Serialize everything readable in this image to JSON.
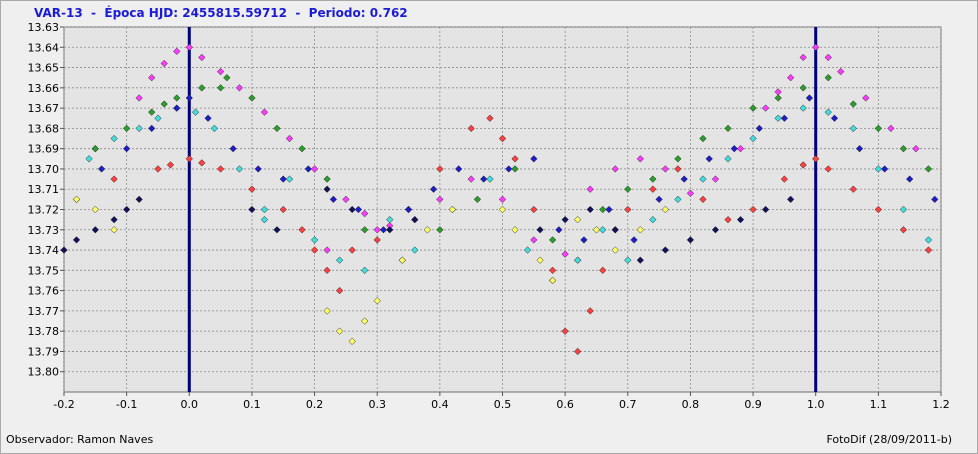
{
  "header": {
    "title": "VAR-13  -  Época HJD: 2455815.59712  -  Periodo: 0.762"
  },
  "footer": {
    "observer": "Observador: Ramon Naves",
    "software": "FotoDif (28/09/2011-b)"
  },
  "colors": {
    "title": "#1b1bd6",
    "marker_line": "#00007a",
    "plot_background": "#e4e4e4",
    "grid": "#8c8c8c"
  },
  "chart_data": {
    "type": "scatter",
    "title": "VAR-13  -  Época HJD: 2455815.59712  -  Periodo: 0.762",
    "xlabel": "",
    "ylabel": "",
    "xlim": [
      -0.2,
      1.2
    ],
    "ylim": [
      13.63,
      13.81
    ],
    "y_inverted": true,
    "grid": true,
    "x_ticks": [
      "-0.2",
      "-0.1",
      "0.0",
      "0.1",
      "0.2",
      "0.3",
      "0.4",
      "0.5",
      "0.6",
      "0.7",
      "0.8",
      "0.9",
      "1.0",
      "1.1",
      "1.2"
    ],
    "y_ticks": [
      "13.63",
      "13.64",
      "13.65",
      "13.66",
      "13.67",
      "13.68",
      "13.69",
      "13.70",
      "13.71",
      "13.72",
      "13.73",
      "13.74",
      "13.75",
      "13.76",
      "13.77",
      "13.78",
      "13.79",
      "13.80"
    ],
    "vertical_markers": [
      0.0,
      1.0
    ],
    "series": [
      {
        "color": "#ff3bff",
        "x": [
          -0.08,
          -0.06,
          -0.04,
          -0.02,
          0.0,
          0.02,
          0.05,
          0.08,
          0.12,
          0.16,
          0.2,
          0.25,
          0.28,
          0.32,
          0.36,
          0.4,
          0.45,
          0.5,
          0.55,
          0.6,
          0.64,
          0.68,
          0.72,
          0.76,
          0.8,
          0.84,
          0.88,
          0.92,
          0.94,
          0.96,
          0.98,
          1.0,
          1.02,
          1.04,
          1.08,
          1.12,
          1.16,
          -0.15,
          0.3,
          0.22
        ],
        "y": [
          13.665,
          13.655,
          13.648,
          13.642,
          13.64,
          13.645,
          13.652,
          13.66,
          13.672,
          13.685,
          13.7,
          13.715,
          13.722,
          13.728,
          13.725,
          13.715,
          13.705,
          13.715,
          13.735,
          13.742,
          13.71,
          13.7,
          13.695,
          13.7,
          13.712,
          13.705,
          13.69,
          13.67,
          13.662,
          13.655,
          13.645,
          13.64,
          13.645,
          13.652,
          13.665,
          13.68,
          13.69,
          13.69,
          13.73,
          13.74
        ]
      },
      {
        "color": "#ff4040",
        "x": [
          -0.05,
          -0.03,
          0.0,
          0.02,
          0.05,
          0.1,
          0.15,
          0.18,
          0.2,
          0.22,
          0.24,
          0.3,
          0.35,
          0.4,
          0.45,
          0.48,
          0.5,
          0.52,
          0.55,
          0.58,
          0.6,
          0.62,
          0.64,
          0.66,
          0.68,
          0.7,
          0.74,
          0.78,
          0.82,
          0.86,
          0.9,
          0.95,
          0.98,
          1.0,
          1.02,
          1.06,
          1.1,
          1.14,
          1.18,
          -0.18,
          -0.12,
          0.26
        ],
        "y": [
          13.7,
          13.698,
          13.695,
          13.697,
          13.7,
          13.71,
          13.72,
          13.73,
          13.74,
          13.75,
          13.76,
          13.735,
          13.72,
          13.7,
          13.68,
          13.675,
          13.685,
          13.695,
          13.72,
          13.75,
          13.78,
          13.79,
          13.77,
          13.75,
          13.73,
          13.72,
          13.71,
          13.7,
          13.715,
          13.725,
          13.72,
          13.705,
          13.698,
          13.695,
          13.7,
          13.71,
          13.72,
          13.73,
          13.74,
          13.715,
          13.705,
          13.74
        ]
      },
      {
        "color": "#2aa02a",
        "x": [
          -0.15,
          -0.1,
          -0.06,
          -0.02,
          0.02,
          0.06,
          0.1,
          0.14,
          0.18,
          0.22,
          0.28,
          0.34,
          0.4,
          0.46,
          0.52,
          0.58,
          0.62,
          0.66,
          0.7,
          0.74,
          0.78,
          0.82,
          0.86,
          0.9,
          0.94,
          0.98,
          1.02,
          1.06,
          1.1,
          1.14,
          1.18,
          0.05,
          -0.04
        ],
        "y": [
          13.69,
          13.68,
          13.672,
          13.665,
          13.66,
          13.655,
          13.665,
          13.68,
          13.69,
          13.705,
          13.73,
          13.745,
          13.73,
          13.715,
          13.7,
          13.735,
          13.745,
          13.72,
          13.71,
          13.705,
          13.695,
          13.685,
          13.68,
          13.67,
          13.665,
          13.66,
          13.655,
          13.668,
          13.68,
          13.69,
          13.7,
          13.66,
          13.668
        ]
      },
      {
        "color": "#40dede",
        "x": [
          -0.12,
          -0.08,
          -0.05,
          -0.02,
          0.01,
          0.04,
          0.08,
          0.12,
          0.16,
          0.2,
          0.24,
          0.28,
          0.32,
          0.36,
          0.42,
          0.48,
          0.54,
          0.58,
          0.62,
          0.66,
          0.7,
          0.74,
          0.78,
          0.82,
          0.86,
          0.9,
          0.94,
          0.98,
          1.02,
          1.06,
          1.1,
          1.14,
          1.18,
          0.12,
          -0.16
        ],
        "y": [
          13.685,
          13.68,
          13.675,
          13.67,
          13.672,
          13.68,
          13.7,
          13.72,
          13.705,
          13.735,
          13.745,
          13.75,
          13.725,
          13.74,
          13.72,
          13.705,
          13.74,
          13.755,
          13.745,
          13.73,
          13.745,
          13.725,
          13.715,
          13.705,
          13.695,
          13.685,
          13.675,
          13.67,
          13.672,
          13.68,
          13.7,
          13.72,
          13.735,
          13.725,
          13.695
        ]
      },
      {
        "color": "#1e1ec8",
        "x": [
          -0.14,
          -0.1,
          -0.06,
          -0.02,
          0.0,
          0.03,
          0.07,
          0.11,
          0.15,
          0.19,
          0.23,
          0.27,
          0.31,
          0.35,
          0.39,
          0.43,
          0.47,
          0.51,
          0.55,
          0.59,
          0.63,
          0.67,
          0.71,
          0.75,
          0.79,
          0.83,
          0.87,
          0.91,
          0.95,
          0.99,
          1.03,
          1.07,
          1.11,
          1.15,
          1.19
        ],
        "y": [
          13.7,
          13.69,
          13.68,
          13.67,
          13.665,
          13.675,
          13.69,
          13.7,
          13.705,
          13.7,
          13.715,
          13.72,
          13.73,
          13.72,
          13.71,
          13.7,
          13.705,
          13.7,
          13.695,
          13.73,
          13.735,
          13.72,
          13.735,
          13.715,
          13.705,
          13.695,
          13.69,
          13.68,
          13.675,
          13.665,
          13.675,
          13.69,
          13.7,
          13.705,
          13.715
        ]
      },
      {
        "color": "#12125a",
        "x": [
          -0.2,
          -0.18,
          -0.15,
          -0.12,
          -0.1,
          -0.08,
          0.1,
          0.14,
          0.22,
          0.26,
          0.32,
          0.36,
          0.56,
          0.6,
          0.64,
          0.68,
          0.72,
          0.76,
          0.8,
          0.84,
          0.88,
          0.92,
          0.96
        ],
        "y": [
          13.74,
          13.735,
          13.73,
          13.725,
          13.72,
          13.715,
          13.72,
          13.73,
          13.71,
          13.72,
          13.73,
          13.725,
          13.73,
          13.725,
          13.72,
          13.73,
          13.745,
          13.74,
          13.735,
          13.73,
          13.725,
          13.72,
          13.715
        ]
      },
      {
        "color": "#ffff66",
        "x": [
          -0.18,
          -0.15,
          -0.12,
          0.22,
          0.24,
          0.26,
          0.28,
          0.3,
          0.34,
          0.38,
          0.42,
          0.5,
          0.52,
          0.56,
          0.58,
          0.62,
          0.65,
          0.68,
          0.72,
          0.76
        ],
        "y": [
          13.715,
          13.72,
          13.73,
          13.77,
          13.78,
          13.785,
          13.775,
          13.765,
          13.745,
          13.73,
          13.72,
          13.72,
          13.73,
          13.745,
          13.755,
          13.725,
          13.73,
          13.74,
          13.73,
          13.72
        ]
      }
    ]
  }
}
